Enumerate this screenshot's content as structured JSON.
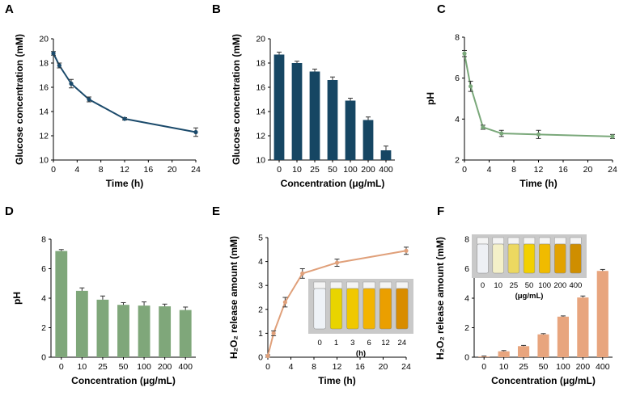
{
  "figure": {
    "panel_letters": [
      "A",
      "B",
      "C",
      "D",
      "E",
      "F"
    ]
  },
  "chart_data": [
    {
      "panel": "A",
      "type": "line",
      "xlabel": "Time (h)",
      "ylabel": "Glucose concentration (mM)",
      "xlim": [
        0,
        24
      ],
      "ylim": [
        10,
        20
      ],
      "xticks": [
        0,
        4,
        8,
        12,
        16,
        20,
        24
      ],
      "yticks": [
        10,
        12,
        14,
        16,
        18,
        20
      ],
      "x": [
        0,
        1,
        3,
        6,
        12,
        24
      ],
      "values": [
        18.8,
        17.8,
        16.3,
        15.0,
        13.4,
        12.3
      ],
      "errors": [
        0.15,
        0.2,
        0.35,
        0.2,
        0.1,
        0.35
      ],
      "color": "#1b4a6b"
    },
    {
      "panel": "B",
      "type": "bar",
      "xlabel": "Concentration (μg/mL)",
      "ylabel": "Glucose concentration (mM)",
      "ylim": [
        10,
        20
      ],
      "yticks": [
        10,
        12,
        14,
        16,
        18,
        20
      ],
      "categories": [
        "0",
        "10",
        "25",
        "50",
        "100",
        "200",
        "400"
      ],
      "values": [
        18.7,
        18.0,
        17.3,
        16.6,
        14.9,
        13.3,
        10.8
      ],
      "errors": [
        0.2,
        0.15,
        0.2,
        0.25,
        0.2,
        0.25,
        0.35
      ],
      "color": "#164663"
    },
    {
      "panel": "C",
      "type": "line",
      "xlabel": "Time (h)",
      "ylabel": "pH",
      "xlim": [
        0,
        24
      ],
      "ylim": [
        2,
        8
      ],
      "xticks": [
        0,
        4,
        8,
        12,
        16,
        20,
        24
      ],
      "yticks": [
        2,
        4,
        6,
        8
      ],
      "x": [
        0,
        1,
        3,
        6,
        12,
        24
      ],
      "values": [
        7.2,
        5.6,
        3.6,
        3.3,
        3.25,
        3.15
      ],
      "errors": [
        0.15,
        0.25,
        0.1,
        0.15,
        0.2,
        0.1
      ],
      "color": "#7aa87a"
    },
    {
      "panel": "D",
      "type": "bar",
      "xlabel": "Concentration (μg/mL)",
      "ylabel": "pH",
      "ylim": [
        0,
        8
      ],
      "yticks": [
        0,
        2,
        4,
        6,
        8
      ],
      "categories": [
        "0",
        "10",
        "25",
        "50",
        "100",
        "200",
        "400"
      ],
      "values": [
        7.2,
        4.5,
        3.9,
        3.55,
        3.5,
        3.45,
        3.2
      ],
      "errors": [
        0.1,
        0.2,
        0.25,
        0.15,
        0.25,
        0.15,
        0.2
      ],
      "color": "#7fa77a"
    },
    {
      "panel": "E",
      "type": "line",
      "xlabel": "Time (h)",
      "ylabel": "H₂O₂  release amount (mM)",
      "xlim": [
        0,
        24
      ],
      "ylim": [
        0,
        5
      ],
      "xticks": [
        0,
        4,
        8,
        12,
        16,
        20,
        24
      ],
      "yticks": [
        0,
        1,
        2,
        3,
        4,
        5
      ],
      "x": [
        0,
        1,
        3,
        6,
        12,
        24
      ],
      "values": [
        0.05,
        1.0,
        2.3,
        3.5,
        3.95,
        4.45
      ],
      "errors": [
        0.05,
        0.1,
        0.2,
        0.2,
        0.15,
        0.15
      ],
      "color": "#e0a07a",
      "inset": {
        "labels": [
          "0",
          "1",
          "3",
          "6",
          "12",
          "24"
        ],
        "unit": "(h)"
      }
    },
    {
      "panel": "F",
      "type": "bar",
      "xlabel": "Concentration (μg/mL)",
      "ylabel": "H₂O₂  release amount (mM)",
      "ylim": [
        0,
        8
      ],
      "yticks": [
        0,
        2,
        4,
        6,
        8
      ],
      "categories": [
        "0",
        "10",
        "25",
        "50",
        "100",
        "200",
        "400"
      ],
      "values": [
        0.05,
        0.4,
        0.75,
        1.55,
        2.75,
        4.05,
        5.85
      ],
      "errors": [
        0.03,
        0.05,
        0.05,
        0.05,
        0.05,
        0.1,
        0.1
      ],
      "color": "#e8a57e",
      "inset": {
        "labels": [
          "0",
          "10",
          "25",
          "50",
          "100",
          "200",
          "400"
        ],
        "unit": "(μg/mL)"
      }
    }
  ]
}
